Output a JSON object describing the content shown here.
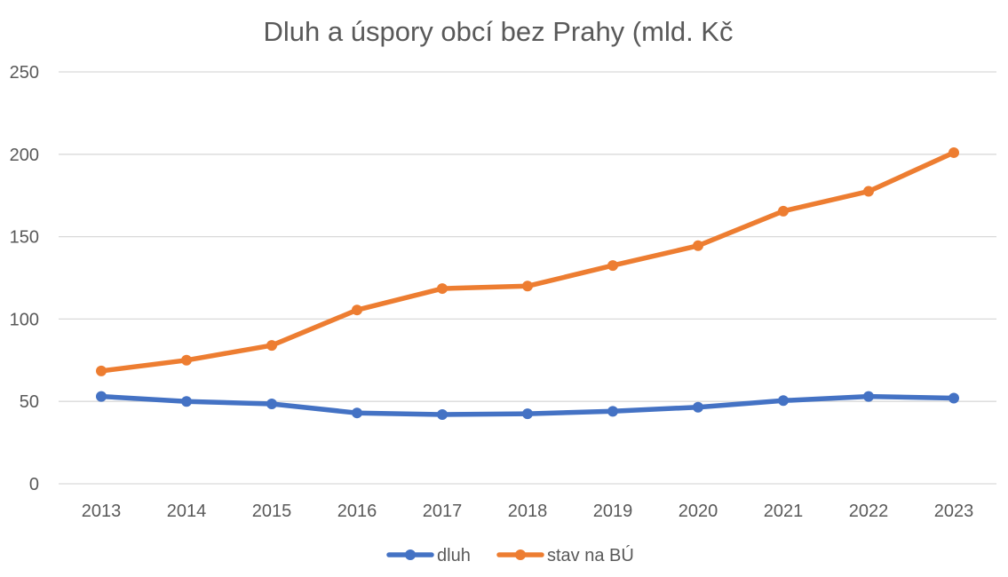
{
  "chart_data": {
    "type": "line",
    "title": "Dluh a úspory obcí bez Prahy (mld. Kč",
    "xlabel": "",
    "ylabel": "",
    "categories": [
      "2013",
      "2014",
      "2015",
      "2016",
      "2017",
      "2018",
      "2019",
      "2020",
      "2021",
      "2022",
      "2023"
    ],
    "ylim": [
      0,
      250
    ],
    "yticks": [
      "0",
      "50",
      "100",
      "150",
      "200",
      "250"
    ],
    "grid": true,
    "legend_position": "bottom",
    "series": [
      {
        "name": "dluh",
        "color": "#4472c4",
        "values": [
          53,
          50,
          48.5,
          43,
          42,
          42.5,
          44,
          46.5,
          50.5,
          53,
          52
        ]
      },
      {
        "name": "stav na BÚ",
        "color": "#ed7d31",
        "values": [
          68.5,
          75,
          84,
          105.5,
          118.5,
          120,
          132.5,
          144.5,
          165.5,
          177.5,
          201
        ]
      }
    ]
  }
}
